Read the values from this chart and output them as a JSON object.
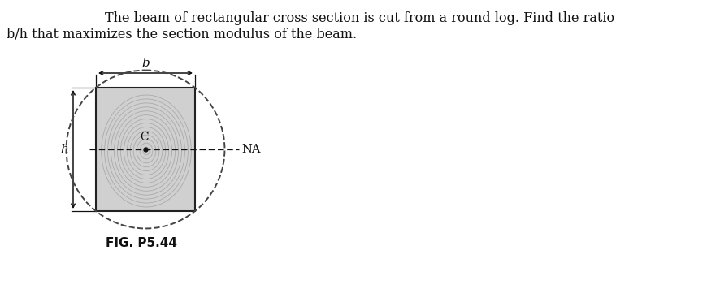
{
  "title_line1": "The beam of rectangular cross section is cut from a round log. Find the ratio",
  "title_line2": "b/h that maximizes the section modulus of the beam.",
  "fig_label": "FIG. P5.44",
  "bg_color": "#ffffff",
  "rect_fill": "#d0d0d0",
  "rect_edge": "#222222",
  "ring_color": "#aaaaaa",
  "circle_color": "#444444",
  "na_line_color": "#111111",
  "center_dot_color": "#111111",
  "label_color": "#111111",
  "arrow_color": "#111111",
  "title_fontsize": 11.5,
  "label_fontsize": 10.5,
  "fig_label_fontsize": 11,
  "num_wood_rings": 14
}
